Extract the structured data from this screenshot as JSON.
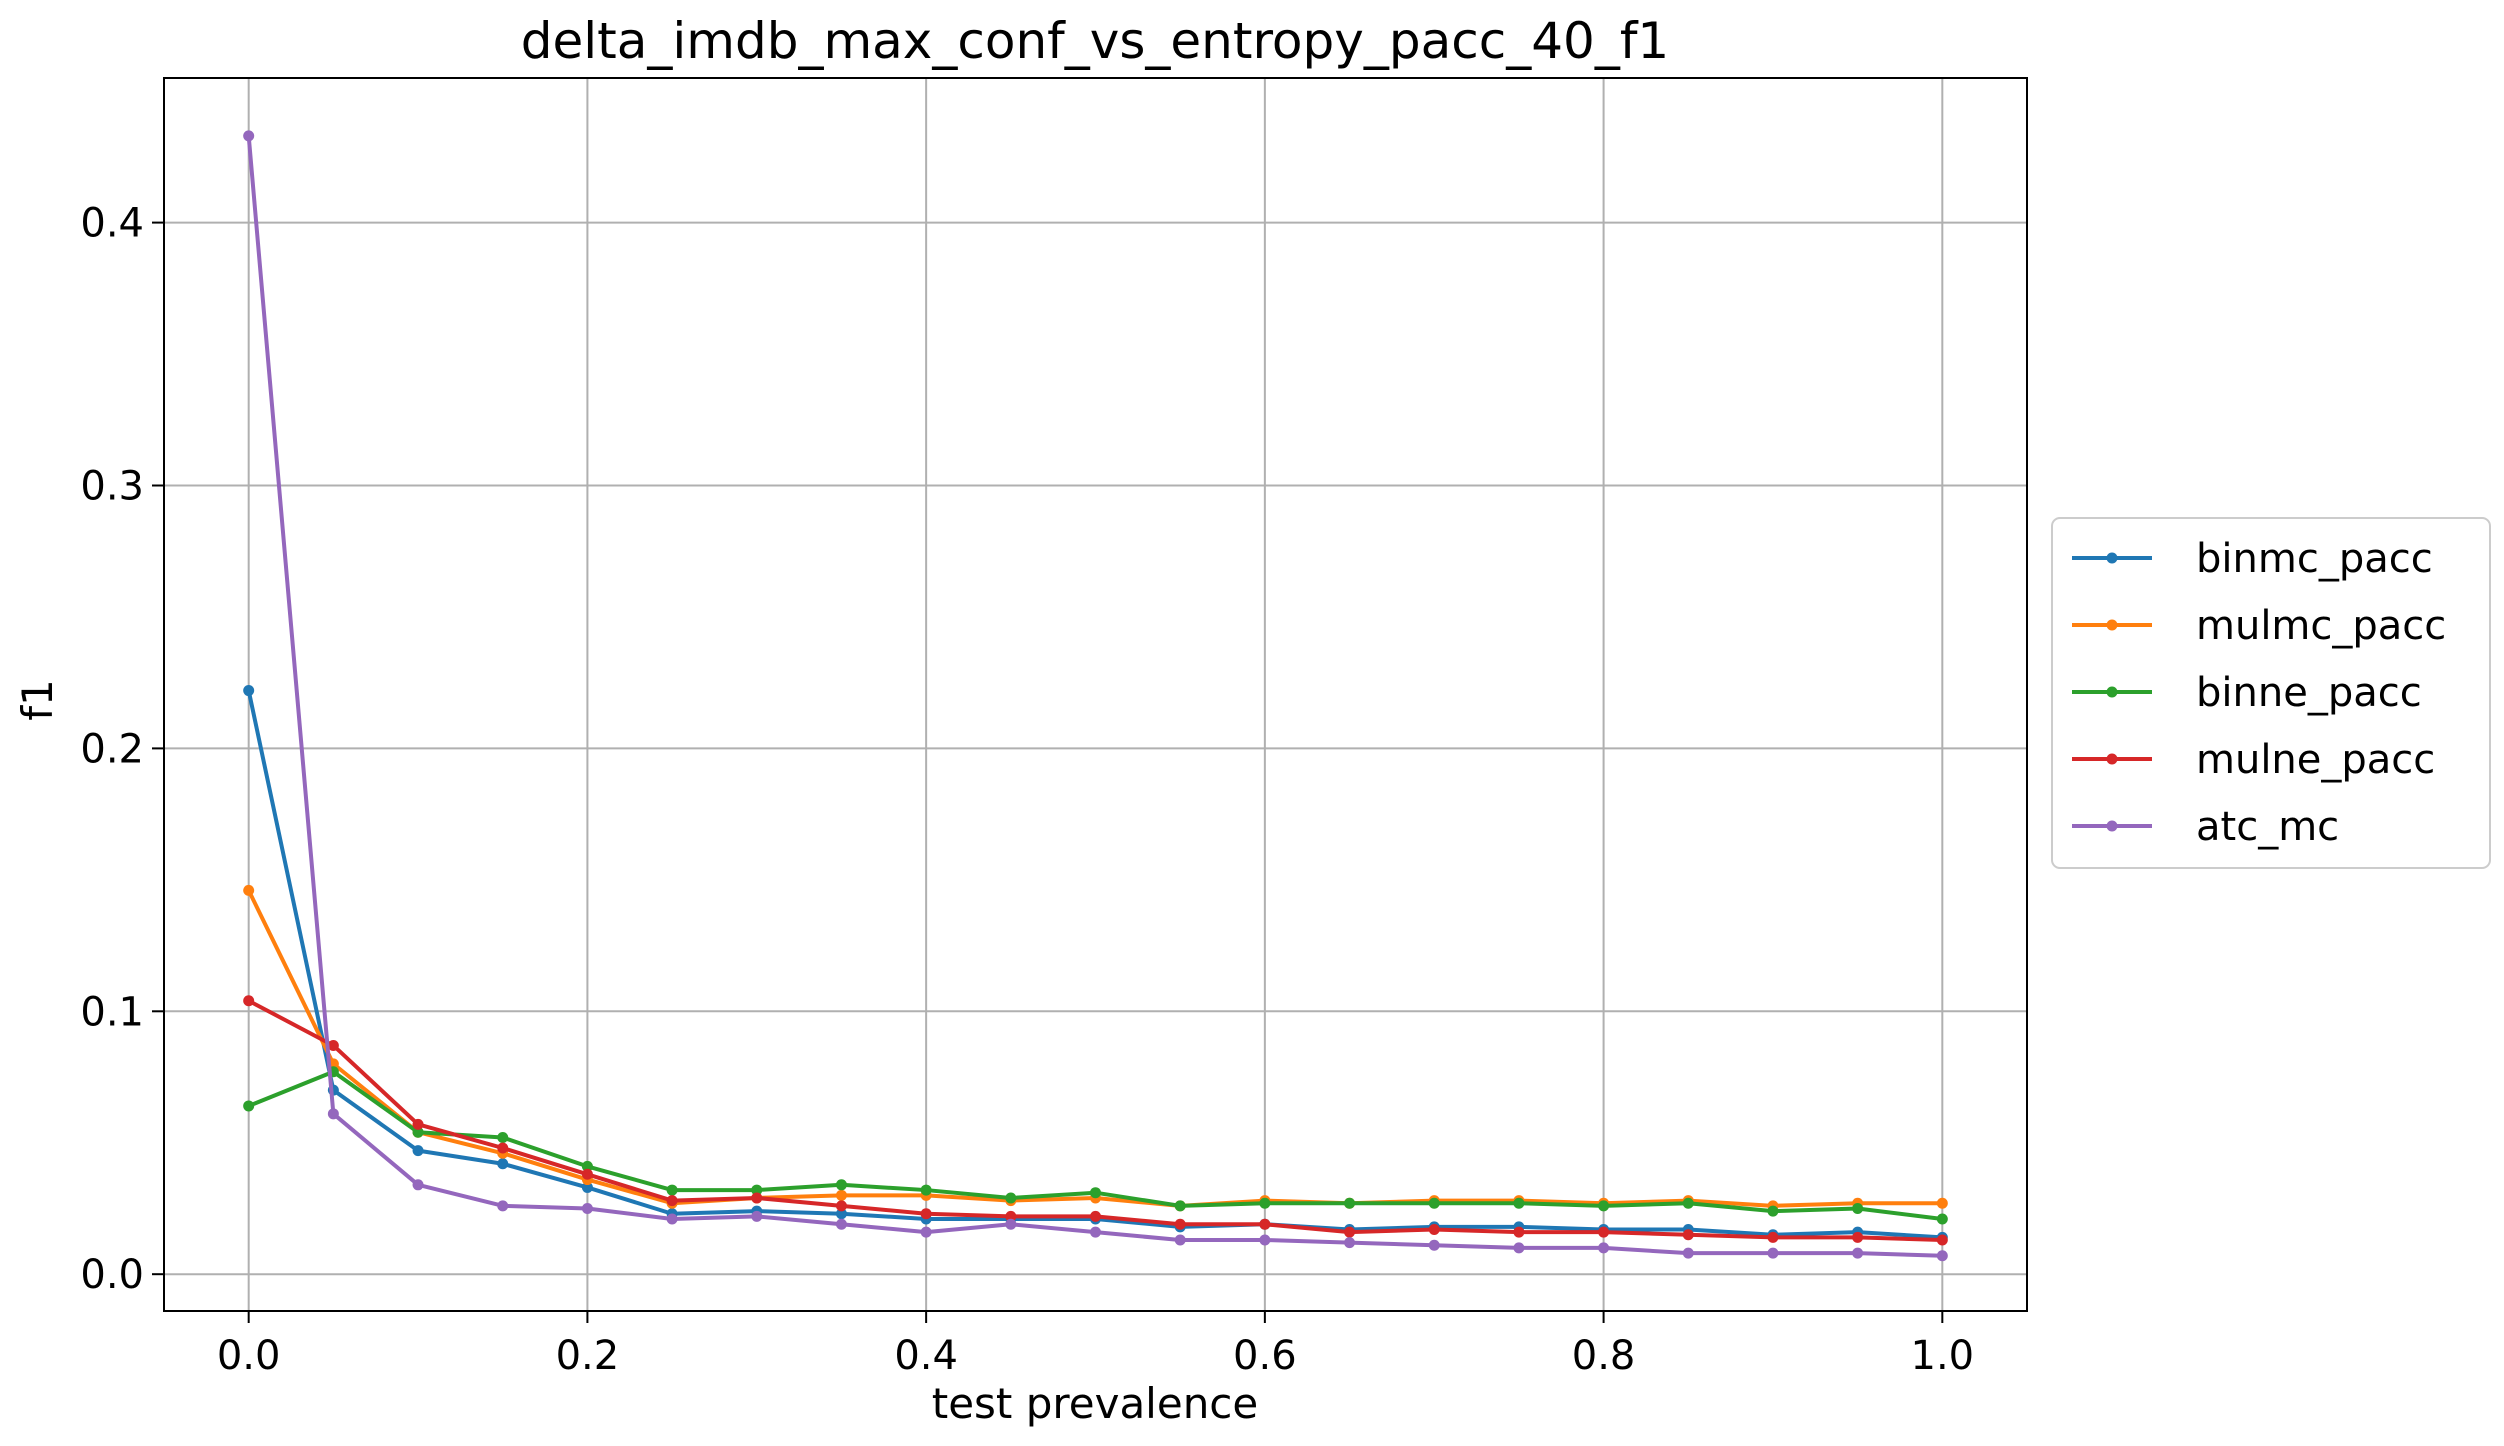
{
  "chart_data": {
    "type": "line",
    "title": "delta_imdb_max_conf_vs_entropy_pacc_40_f1",
    "xlabel": "test prevalence",
    "ylabel": "f1",
    "xlim": [
      -0.05,
      1.05
    ],
    "ylim": [
      -0.014,
      0.455
    ],
    "xticks": [
      0.0,
      0.2,
      0.4,
      0.6,
      0.8,
      1.0
    ],
    "xtick_labels": [
      "0.0",
      "0.2",
      "0.4",
      "0.6",
      "0.8",
      "1.0"
    ],
    "yticks": [
      0.0,
      0.1,
      0.2,
      0.3,
      0.4
    ],
    "ytick_labels": [
      "0.0",
      "0.1",
      "0.2",
      "0.3",
      "0.4"
    ],
    "grid": true,
    "legend_position": "right-outside",
    "x": [
      0.0,
      0.05,
      0.1,
      0.15,
      0.2,
      0.25,
      0.3,
      0.35,
      0.4,
      0.45,
      0.5,
      0.55,
      0.6,
      0.65,
      0.7,
      0.75,
      0.8,
      0.85,
      0.9,
      0.95,
      1.0
    ],
    "series": [
      {
        "name": "binmc_pacc",
        "color": "#1f77b4",
        "values": [
          0.222,
          0.07,
          0.047,
          0.042,
          0.033,
          0.023,
          0.024,
          0.023,
          0.021,
          0.021,
          0.021,
          0.018,
          0.019,
          0.017,
          0.018,
          0.018,
          0.017,
          0.017,
          0.015,
          0.016,
          0.014
        ]
      },
      {
        "name": "mulmc_pacc",
        "color": "#ff7f0e",
        "values": [
          0.146,
          0.08,
          0.054,
          0.046,
          0.036,
          0.027,
          0.029,
          0.03,
          0.03,
          0.028,
          0.029,
          0.026,
          0.028,
          0.027,
          0.028,
          0.028,
          0.027,
          0.028,
          0.026,
          0.027,
          0.027
        ]
      },
      {
        "name": "binne_pacc",
        "color": "#2ca02c",
        "values": [
          0.064,
          0.077,
          0.054,
          0.052,
          0.041,
          0.032,
          0.032,
          0.034,
          0.032,
          0.029,
          0.031,
          0.026,
          0.027,
          0.027,
          0.027,
          0.027,
          0.026,
          0.027,
          0.024,
          0.025,
          0.021
        ]
      },
      {
        "name": "mulne_pacc",
        "color": "#d62728",
        "values": [
          0.104,
          0.087,
          0.057,
          0.048,
          0.038,
          0.028,
          0.029,
          0.026,
          0.023,
          0.022,
          0.022,
          0.019,
          0.019,
          0.016,
          0.017,
          0.016,
          0.016,
          0.015,
          0.014,
          0.014,
          0.013
        ]
      },
      {
        "name": "atc_mc",
        "color": "#9467bd",
        "values": [
          0.433,
          0.061,
          0.034,
          0.026,
          0.025,
          0.021,
          0.022,
          0.019,
          0.016,
          0.019,
          0.016,
          0.013,
          0.013,
          0.012,
          0.011,
          0.01,
          0.01,
          0.008,
          0.008,
          0.008,
          0.007
        ]
      }
    ]
  }
}
